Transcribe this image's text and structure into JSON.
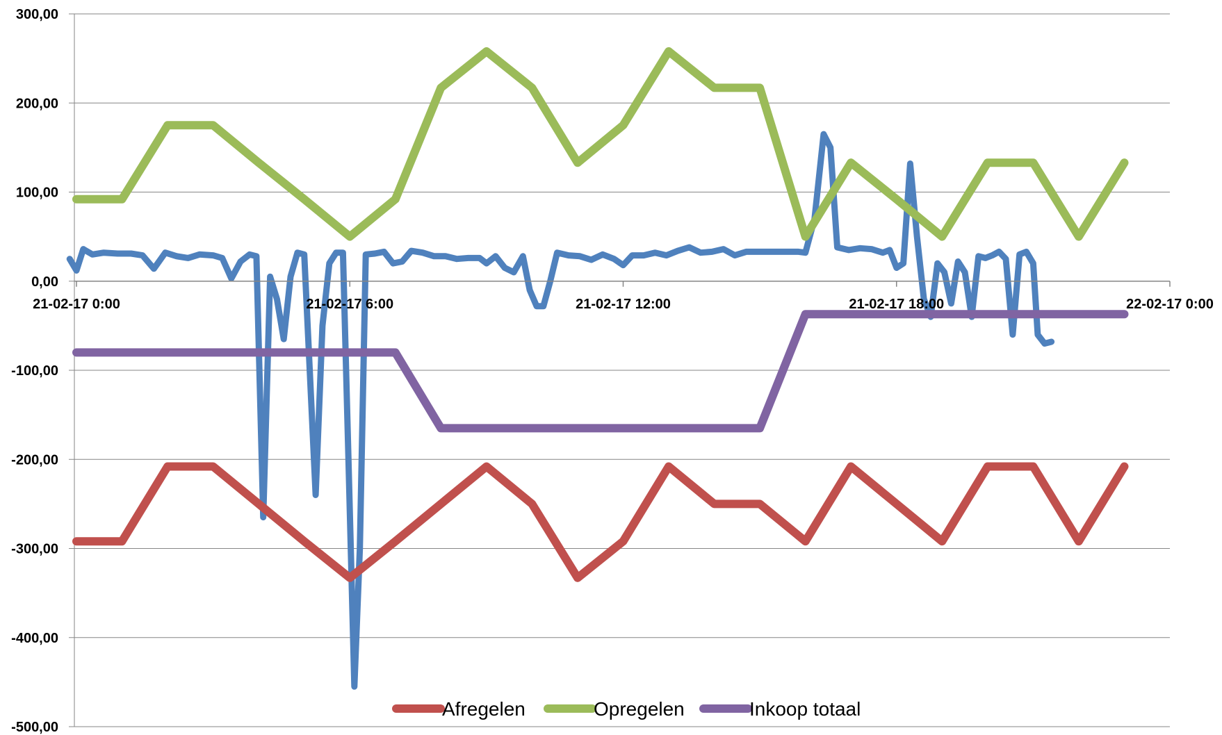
{
  "chart_data": {
    "type": "line",
    "title": "",
    "xlabel": "",
    "ylabel": "",
    "ylim": [
      -500,
      300
    ],
    "yticks": [
      300,
      200,
      100,
      0,
      -100,
      -200,
      -300,
      -400,
      -500
    ],
    "ytick_labels": [
      "300,00",
      "200,00",
      "100,00",
      "0,00",
      "-100,00",
      "-200,00",
      "-300,00",
      "-400,00",
      "-500,00"
    ],
    "xlim_hours": [
      0,
      24
    ],
    "xticks_hours": [
      0,
      6,
      12,
      18,
      24
    ],
    "xtick_labels": [
      "21-02-17 0:00",
      "21-02-17 6:00",
      "21-02-17 12:00",
      "21-02-17 18:00",
      "22-02-17 0:00"
    ],
    "grid": "horizontal",
    "legend": "bottom",
    "series": [
      {
        "name": "Afregelen",
        "color": "#c0504d",
        "in_legend": true,
        "points": [
          [
            0,
            -292
          ],
          [
            1,
            -292
          ],
          [
            2,
            -208
          ],
          [
            3,
            -208
          ],
          [
            4,
            -250
          ],
          [
            5,
            -292
          ],
          [
            6,
            -333
          ],
          [
            7,
            -292
          ],
          [
            8,
            -250
          ],
          [
            9,
            -208
          ],
          [
            10,
            -250
          ],
          [
            11,
            -333
          ],
          [
            12,
            -292
          ],
          [
            13,
            -208
          ],
          [
            14,
            -250
          ],
          [
            15,
            -250
          ],
          [
            16,
            -292
          ],
          [
            17,
            -208
          ],
          [
            18,
            -250
          ],
          [
            19,
            -292
          ],
          [
            20,
            -208
          ],
          [
            21,
            -208
          ],
          [
            22,
            -292
          ],
          [
            23,
            -208
          ]
        ]
      },
      {
        "name": "Opregelen",
        "color": "#9bbb59",
        "in_legend": true,
        "points": [
          [
            0,
            92
          ],
          [
            1,
            92
          ],
          [
            2,
            175
          ],
          [
            3,
            175
          ],
          [
            4,
            133
          ],
          [
            5,
            92
          ],
          [
            6,
            50
          ],
          [
            7,
            92
          ],
          [
            8,
            217
          ],
          [
            9,
            258
          ],
          [
            10,
            217
          ],
          [
            11,
            133
          ],
          [
            12,
            175
          ],
          [
            13,
            258
          ],
          [
            14,
            217
          ],
          [
            15,
            217
          ],
          [
            16,
            50
          ],
          [
            17,
            133
          ],
          [
            18,
            92
          ],
          [
            19,
            50
          ],
          [
            20,
            133
          ],
          [
            21,
            133
          ],
          [
            22,
            50
          ],
          [
            23,
            133
          ]
        ]
      },
      {
        "name": "Inkoop totaal",
        "color": "#8064a2",
        "in_legend": true,
        "points": [
          [
            0,
            -80
          ],
          [
            7,
            -80
          ],
          [
            8,
            -165
          ],
          [
            15,
            -165
          ],
          [
            16,
            -37
          ],
          [
            23,
            -37
          ]
        ]
      },
      {
        "name": "",
        "color": "#4f81bd",
        "in_legend": false,
        "points": [
          [
            -0.15,
            25
          ],
          [
            0,
            12
          ],
          [
            0.15,
            36
          ],
          [
            0.35,
            30
          ],
          [
            0.6,
            32
          ],
          [
            0.9,
            31
          ],
          [
            1.2,
            31
          ],
          [
            1.45,
            29
          ],
          [
            1.7,
            14
          ],
          [
            1.95,
            32
          ],
          [
            2.2,
            28
          ],
          [
            2.45,
            26
          ],
          [
            2.7,
            30
          ],
          [
            3,
            29
          ],
          [
            3.2,
            26
          ],
          [
            3.4,
            3
          ],
          [
            3.6,
            22
          ],
          [
            3.8,
            30
          ],
          [
            3.95,
            28
          ],
          [
            4.1,
            -265
          ],
          [
            4.25,
            5
          ],
          [
            4.4,
            -20
          ],
          [
            4.55,
            -65
          ],
          [
            4.7,
            5
          ],
          [
            4.85,
            32
          ],
          [
            5,
            30
          ],
          [
            5.12,
            -100
          ],
          [
            5.25,
            -240
          ],
          [
            5.4,
            -50
          ],
          [
            5.55,
            20
          ],
          [
            5.7,
            32
          ],
          [
            5.85,
            32
          ],
          [
            5.97,
            -200
          ],
          [
            6.1,
            -455
          ],
          [
            6.22,
            -300
          ],
          [
            6.35,
            30
          ],
          [
            6.55,
            31
          ],
          [
            6.75,
            33
          ],
          [
            6.95,
            20
          ],
          [
            7.15,
            22
          ],
          [
            7.35,
            34
          ],
          [
            7.6,
            32
          ],
          [
            7.85,
            28
          ],
          [
            8.1,
            28
          ],
          [
            8.35,
            25
          ],
          [
            8.6,
            26
          ],
          [
            8.85,
            26
          ],
          [
            9,
            20
          ],
          [
            9.2,
            28
          ],
          [
            9.4,
            15
          ],
          [
            9.6,
            10
          ],
          [
            9.8,
            28
          ],
          [
            9.95,
            -10
          ],
          [
            10.1,
            -28
          ],
          [
            10.25,
            -28
          ],
          [
            10.4,
            0
          ],
          [
            10.55,
            32
          ],
          [
            10.8,
            29
          ],
          [
            11.05,
            28
          ],
          [
            11.3,
            24
          ],
          [
            11.55,
            30
          ],
          [
            11.8,
            25
          ],
          [
            12,
            18
          ],
          [
            12.2,
            29
          ],
          [
            12.45,
            29
          ],
          [
            12.7,
            32
          ],
          [
            12.95,
            29
          ],
          [
            13.2,
            34
          ],
          [
            13.45,
            38
          ],
          [
            13.7,
            32
          ],
          [
            13.95,
            33
          ],
          [
            14.2,
            36
          ],
          [
            14.45,
            29
          ],
          [
            14.7,
            33
          ],
          [
            15,
            33
          ],
          [
            15.3,
            33
          ],
          [
            15.6,
            33
          ],
          [
            15.85,
            33
          ],
          [
            16,
            32
          ],
          [
            16.2,
            70
          ],
          [
            16.4,
            165
          ],
          [
            16.55,
            150
          ],
          [
            16.7,
            38
          ],
          [
            16.95,
            35
          ],
          [
            17.2,
            37
          ],
          [
            17.45,
            36
          ],
          [
            17.7,
            32
          ],
          [
            17.85,
            35
          ],
          [
            18,
            15
          ],
          [
            18.15,
            20
          ],
          [
            18.3,
            132
          ],
          [
            18.45,
            50
          ],
          [
            18.6,
            -20
          ],
          [
            18.75,
            -40
          ],
          [
            18.9,
            20
          ],
          [
            19.05,
            10
          ],
          [
            19.2,
            -25
          ],
          [
            19.35,
            22
          ],
          [
            19.5,
            10
          ],
          [
            19.65,
            -40
          ],
          [
            19.8,
            28
          ],
          [
            19.95,
            26
          ],
          [
            20.1,
            29
          ],
          [
            20.25,
            33
          ],
          [
            20.4,
            25
          ],
          [
            20.55,
            -60
          ],
          [
            20.7,
            30
          ],
          [
            20.85,
            33
          ],
          [
            21,
            20
          ],
          [
            21.1,
            -60
          ],
          [
            21.25,
            -70
          ],
          [
            21.4,
            -68
          ]
        ]
      }
    ]
  }
}
